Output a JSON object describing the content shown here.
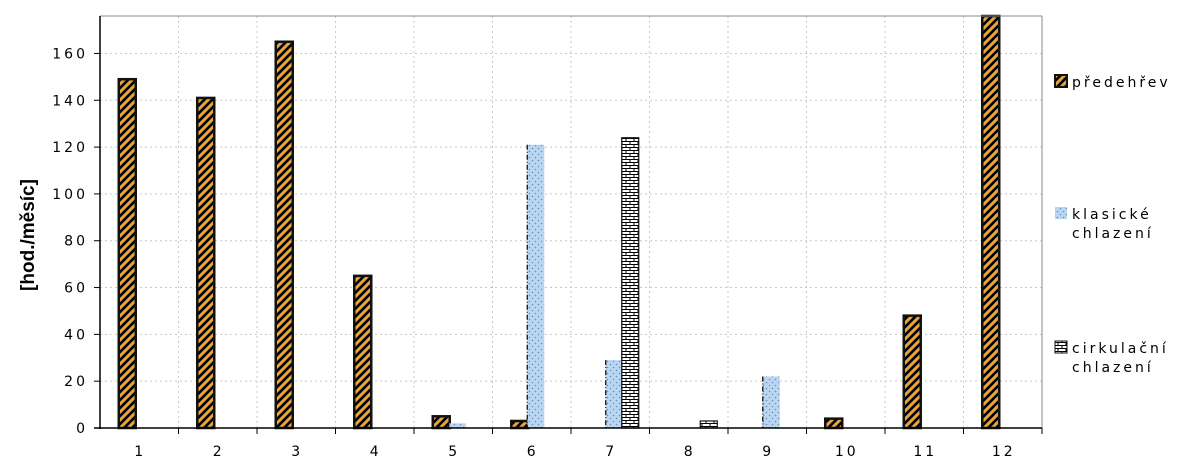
{
  "chart_data": {
    "type": "bar",
    "title": "",
    "xlabel": "",
    "ylabel": "[hod./měsíc]",
    "categories": [
      "1",
      "2",
      "3",
      "4",
      "5",
      "6",
      "7",
      "8",
      "9",
      "10",
      "11",
      "12"
    ],
    "series": [
      {
        "name": "předehřev",
        "legend_lines": [
          "předehřev"
        ],
        "pattern": "diagonal-stripes",
        "color": "#e8a33a",
        "values": [
          149,
          141,
          165,
          65,
          5,
          3,
          0,
          0,
          0,
          4,
          48,
          176
        ]
      },
      {
        "name": "klasické chlazení",
        "legend_lines": [
          "klasické",
          "chlazení"
        ],
        "pattern": "dots",
        "color": "#b9d6f2",
        "values": [
          0,
          0,
          0,
          0,
          2,
          121,
          29,
          0,
          22,
          0,
          0,
          0
        ]
      },
      {
        "name": "cirkulační chlazení",
        "legend_lines": [
          "cirkulační",
          "chlazení"
        ],
        "pattern": "bricks",
        "color": "#ffffff",
        "values": [
          0,
          0,
          0,
          0,
          0,
          0,
          124,
          3,
          0,
          0,
          0,
          0
        ]
      }
    ],
    "ylim": [
      0,
      176
    ],
    "yticks": [
      0,
      20,
      40,
      60,
      80,
      100,
      120,
      140,
      160
    ],
    "grid": true,
    "legend_position": "right"
  }
}
